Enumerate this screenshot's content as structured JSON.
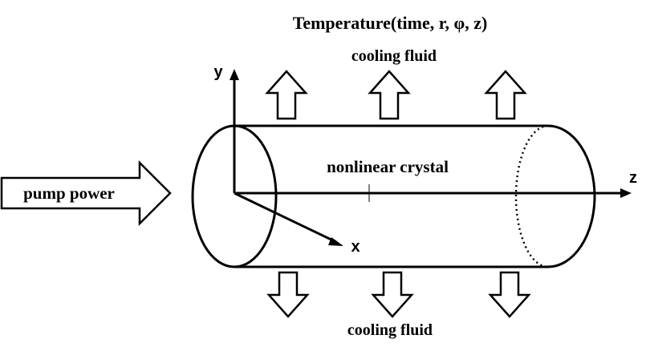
{
  "title": "Temperature(time, r, φ, z)",
  "top_label": "cooling fluid",
  "bottom_label": "cooling fluid",
  "crystal_label": "nonlinear crystal",
  "pump_label": "pump power",
  "axes": {
    "x": "x",
    "y": "y",
    "z": "z"
  },
  "colors": {
    "line": "#000000",
    "background": "#ffffff"
  }
}
